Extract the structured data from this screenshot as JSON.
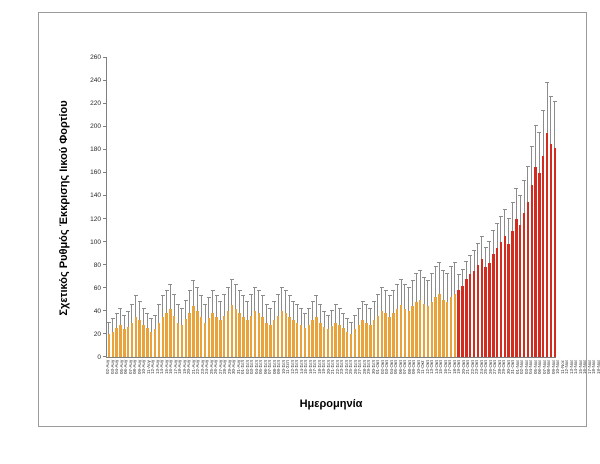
{
  "chart_data": {
    "type": "bar",
    "title": "",
    "xlabel": "Ημερομηνία",
    "ylabel": "Σχετικός Ρυθμός Έκκρισης Ιικού Φορτίου",
    "ylim": [
      0,
      260
    ],
    "y_tick_step": 20,
    "grid": false,
    "legend": "none",
    "error_bars": "upper",
    "bar_colors": {
      "early": "#E8A33D",
      "late": "#D22B20"
    },
    "error_bar_color": "#8C8C8C",
    "red_start_index": 91,
    "red_start_category": "01-Νοε",
    "categories": [
      "02-Αυγ",
      "03-Αυγ",
      "04-Αυγ",
      "05-Αυγ",
      "06-Αυγ",
      "07-Αυγ",
      "08-Αυγ",
      "09-Αυγ",
      "10-Αυγ",
      "11-Αυγ",
      "12-Αυγ",
      "13-Αυγ",
      "14-Αυγ",
      "15-Αυγ",
      "16-Αυγ",
      "17-Αυγ",
      "18-Αυγ",
      "19-Αυγ",
      "20-Αυγ",
      "21-Αυγ",
      "22-Αυγ",
      "23-Αυγ",
      "24-Αυγ",
      "25-Αυγ",
      "26-Αυγ",
      "27-Αυγ",
      "28-Αυγ",
      "29-Αυγ",
      "30-Αυγ",
      "31-Αυγ",
      "01-Σεπ",
      "02-Σεπ",
      "03-Σεπ",
      "04-Σεπ",
      "05-Σεπ",
      "06-Σεπ",
      "07-Σεπ",
      "08-Σεπ",
      "09-Σεπ",
      "10-Σεπ",
      "11-Σεπ",
      "12-Σεπ",
      "13-Σεπ",
      "14-Σεπ",
      "15-Σεπ",
      "16-Σεπ",
      "17-Σεπ",
      "18-Σεπ",
      "19-Σεπ",
      "20-Σεπ",
      "21-Σεπ",
      "22-Σεπ",
      "23-Σεπ",
      "24-Σεπ",
      "25-Σεπ",
      "26-Σεπ",
      "27-Σεπ",
      "28-Σεπ",
      "29-Σεπ",
      "30-Σεπ",
      "01-Οκτ",
      "02-Οκτ",
      "03-Οκτ",
      "04-Οκτ",
      "05-Οκτ",
      "06-Οκτ",
      "07-Οκτ",
      "08-Οκτ",
      "09-Οκτ",
      "10-Οκτ",
      "11-Οκτ",
      "12-Οκτ",
      "13-Οκτ",
      "14-Οκτ",
      "15-Οκτ",
      "16-Οκτ",
      "17-Οκτ",
      "18-Οκτ",
      "19-Οκτ",
      "20-Οκτ",
      "21-Οκτ",
      "22-Οκτ",
      "23-Οκτ",
      "24-Οκτ",
      "25-Οκτ",
      "26-Οκτ",
      "27-Οκτ",
      "28-Οκτ",
      "29-Οκτ",
      "30-Οκτ",
      "31-Οκτ",
      "01-Νοε",
      "02-Νοε",
      "03-Νοε",
      "04-Νοε",
      "05-Νοε",
      "06-Νοε",
      "07-Νοε",
      "08-Νοε",
      "09-Νοε",
      "10-Νοε",
      "11-Νοε",
      "12-Νοε",
      "13-Νοε",
      "14-Νοε",
      "15-Νοε",
      "16-Νοε",
      "17-Νοε",
      "18-Νοε",
      "19-Νοε",
      "20-Νοε",
      "21-Νοε",
      "22-Νοε",
      "23-Νοε",
      "24-Νοε",
      "25-Νοε",
      "26-Νοε"
    ],
    "values": [
      20,
      22,
      25,
      28,
      24,
      26,
      30,
      35,
      32,
      28,
      25,
      22,
      24,
      30,
      35,
      38,
      42,
      36,
      30,
      28,
      33,
      38,
      44,
      40,
      35,
      30,
      34,
      38,
      35,
      32,
      36,
      40,
      45,
      42,
      38,
      35,
      32,
      36,
      40,
      38,
      35,
      30,
      28,
      32,
      36,
      40,
      38,
      35,
      32,
      30,
      28,
      25,
      28,
      32,
      35,
      30,
      26,
      24,
      27,
      30,
      28,
      25,
      22,
      20,
      24,
      28,
      32,
      30,
      28,
      32,
      36,
      40,
      38,
      35,
      38,
      42,
      45,
      42,
      40,
      44,
      48,
      50,
      46,
      44,
      48,
      52,
      55,
      50,
      48,
      52,
      55,
      58,
      62,
      68,
      72,
      75,
      80,
      85,
      78,
      82,
      90,
      95,
      100,
      105,
      98,
      110,
      120,
      115,
      125,
      135,
      150,
      165,
      160,
      175,
      195,
      185,
      182
    ],
    "errors": [
      10,
      11,
      12,
      14,
      12,
      13,
      15,
      18,
      16,
      14,
      12,
      11,
      12,
      15,
      18,
      19,
      21,
      18,
      15,
      14,
      16,
      19,
      22,
      20,
      18,
      15,
      17,
      19,
      18,
      16,
      18,
      20,
      22,
      21,
      19,
      18,
      16,
      18,
      20,
      19,
      18,
      15,
      14,
      16,
      18,
      20,
      19,
      18,
      16,
      15,
      14,
      12,
      14,
      16,
      18,
      15,
      13,
      12,
      13,
      15,
      14,
      12,
      11,
      10,
      12,
      14,
      16,
      15,
      14,
      16,
      18,
      20,
      19,
      18,
      19,
      21,
      22,
      21,
      20,
      22,
      24,
      25,
      23,
      22,
      24,
      26,
      27,
      25,
      24,
      26,
      27,
      13,
      14,
      15,
      16,
      17,
      18,
      19,
      17,
      18,
      20,
      21,
      22,
      23,
      22,
      24,
      26,
      25,
      28,
      30,
      33,
      36,
      35,
      39,
      43,
      41,
      40
    ]
  }
}
